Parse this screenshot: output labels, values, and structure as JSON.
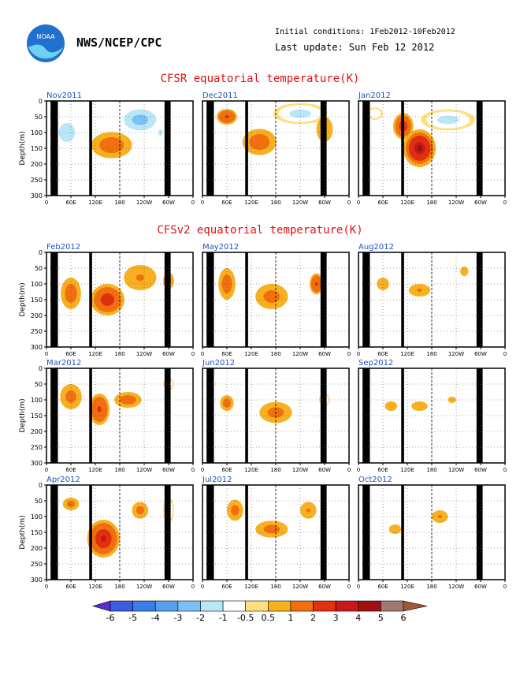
{
  "header": {
    "org": "NWS/NCEP/CPC",
    "initial_conditions": "Initial conditions: 1Feb2012-10Feb2012",
    "last_update": "Last update: Sun Feb 12 2012",
    "logo_text": "NOAA"
  },
  "sections": {
    "cfsr_title": "CFSR equatorial temperature(K)",
    "cfsv2_title": "CFSv2 equatorial temperature(K)"
  },
  "chart_data": {
    "type": "heatmap",
    "ylabel": "Depth(m)",
    "xticks": [
      "0",
      "60E",
      "120E",
      "180",
      "120W",
      "60W",
      "0"
    ],
    "yticks": [
      0,
      50,
      100,
      150,
      200,
      250,
      300
    ],
    "ylim": [
      0,
      300
    ],
    "panels": [
      {
        "label": "Nov2011",
        "blobs": [
          [
            50,
            100,
            40,
            60,
            -2
          ],
          [
            160,
            140,
            60,
            50,
            1.6
          ],
          [
            230,
            60,
            60,
            50,
            -2.5
          ],
          [
            280,
            100,
            30,
            60,
            -1.2
          ]
        ]
      },
      {
        "label": "Dec2011",
        "blobs": [
          [
            60,
            50,
            30,
            30,
            2
          ],
          [
            140,
            130,
            50,
            50,
            1.8
          ],
          [
            240,
            40,
            80,
            40,
            -1.5
          ],
          [
            300,
            90,
            30,
            60,
            1.0
          ]
        ]
      },
      {
        "label": "Jan2012",
        "blobs": [
          [
            110,
            80,
            30,
            50,
            2.5
          ],
          [
            150,
            150,
            40,
            60,
            4.2
          ],
          [
            220,
            60,
            80,
            40,
            -1.5
          ],
          [
            40,
            40,
            30,
            30,
            -1
          ]
        ]
      },
      {
        "label": "Feb2012",
        "blobs": [
          [
            60,
            130,
            30,
            60,
            1.6
          ],
          [
            150,
            150,
            50,
            60,
            2.8
          ],
          [
            230,
            80,
            60,
            60,
            1
          ],
          [
            300,
            90,
            20,
            40,
            1.2
          ]
        ]
      },
      {
        "label": "May2012",
        "blobs": [
          [
            60,
            100,
            25,
            60,
            1.5
          ],
          [
            170,
            140,
            60,
            60,
            1.4
          ],
          [
            280,
            100,
            20,
            40,
            2.0
          ]
        ]
      },
      {
        "label": "Aug2012",
        "blobs": [
          [
            60,
            100,
            30,
            40,
            0.8
          ],
          [
            150,
            120,
            40,
            30,
            1.0
          ],
          [
            260,
            60,
            20,
            30,
            0.8
          ]
        ]
      },
      {
        "label": "Mar2012",
        "blobs": [
          [
            60,
            90,
            40,
            60,
            1.3
          ],
          [
            130,
            130,
            30,
            60,
            2.2
          ],
          [
            200,
            100,
            40,
            30,
            1.5
          ],
          [
            300,
            50,
            20,
            30,
            -1
          ]
        ]
      },
      {
        "label": "Jun2012",
        "blobs": [
          [
            60,
            110,
            20,
            30,
            1.5
          ],
          [
            180,
            140,
            60,
            50,
            1.2
          ],
          [
            300,
            100,
            20,
            30,
            -1
          ]
        ]
      },
      {
        "label": "Sep2012",
        "blobs": [
          [
            80,
            120,
            30,
            30,
            0.8
          ],
          [
            150,
            120,
            40,
            30,
            0.8
          ],
          [
            230,
            100,
            30,
            30,
            0.7
          ]
        ]
      },
      {
        "label": "Apr2012",
        "blobs": [
          [
            60,
            60,
            30,
            30,
            1.3
          ],
          [
            140,
            170,
            40,
            60,
            3.0
          ],
          [
            230,
            80,
            30,
            40,
            1.2
          ],
          [
            300,
            80,
            20,
            60,
            -1
          ]
        ]
      },
      {
        "label": "Jul2012",
        "blobs": [
          [
            80,
            80,
            30,
            50,
            1.2
          ],
          [
            170,
            140,
            60,
            40,
            1.2
          ],
          [
            260,
            80,
            30,
            40,
            1.0
          ],
          [
            320,
            110,
            20,
            40,
            -0.8
          ]
        ]
      },
      {
        "label": "Oct2012",
        "blobs": [
          [
            90,
            140,
            30,
            30,
            0.8
          ],
          [
            200,
            100,
            30,
            30,
            1.0
          ],
          [
            320,
            110,
            20,
            40,
            -0.8
          ]
        ]
      }
    ],
    "colorbar": {
      "labels": [
        "-6",
        "-5",
        "-4",
        "-3",
        "-2",
        "-1",
        "-0.5",
        "0.5",
        "1",
        "2",
        "3",
        "4",
        "5",
        "6"
      ],
      "colors": [
        "#5a30c8",
        "#3c5ce0",
        "#3c7ce8",
        "#5a9ef0",
        "#7cc0f8",
        "#b8e8f8",
        "#ffffff",
        "#ffe080",
        "#f8b020",
        "#f07010",
        "#e03010",
        "#c81818",
        "#a01010",
        "#a07870",
        "#a05838"
      ]
    }
  }
}
